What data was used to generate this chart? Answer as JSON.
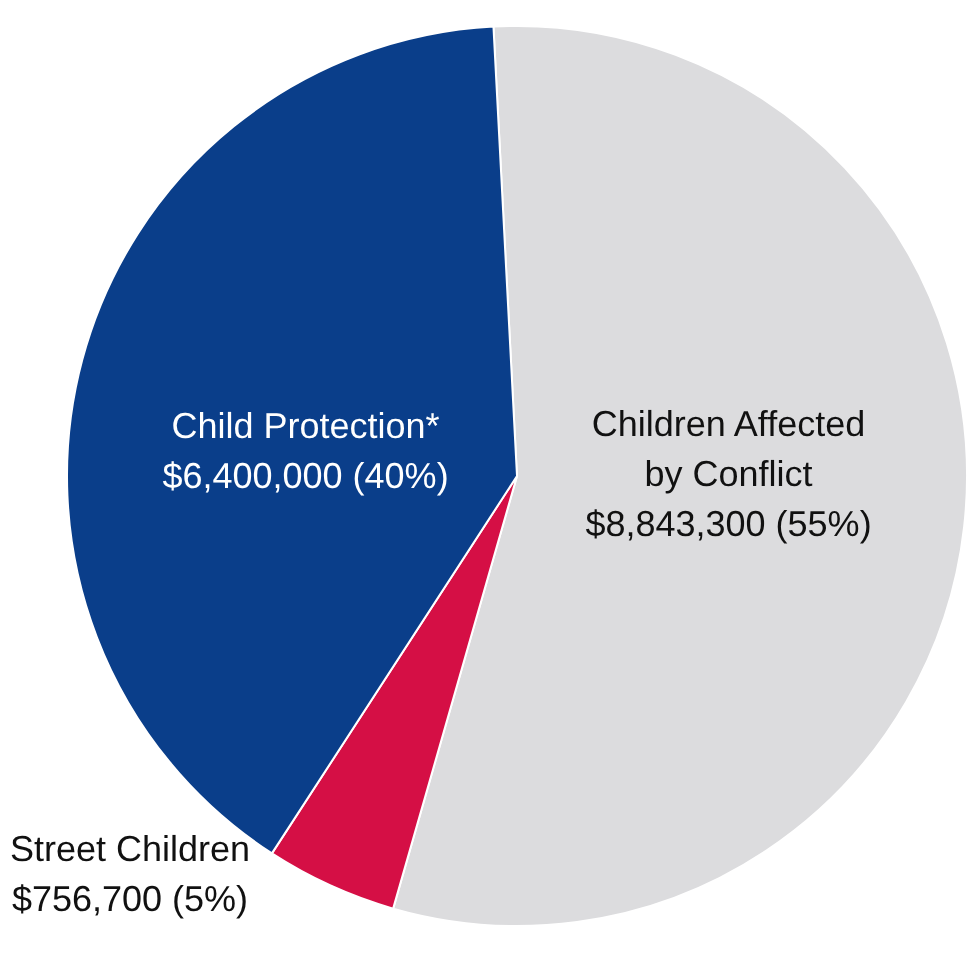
{
  "chart_data": {
    "type": "pie",
    "categories": [
      "Children Affected by Conflict",
      "Street Children",
      "Child Protection*"
    ],
    "values": [
      8843300,
      756700,
      6400000
    ],
    "colors": [
      "#dcdcde",
      "#d50f45",
      "#0a3e8a"
    ],
    "value_labels": [
      "$8,843,300 (55%)",
      "$756,700 (5%)",
      "$6,400,000 (40%)"
    ],
    "legend": false
  }
}
